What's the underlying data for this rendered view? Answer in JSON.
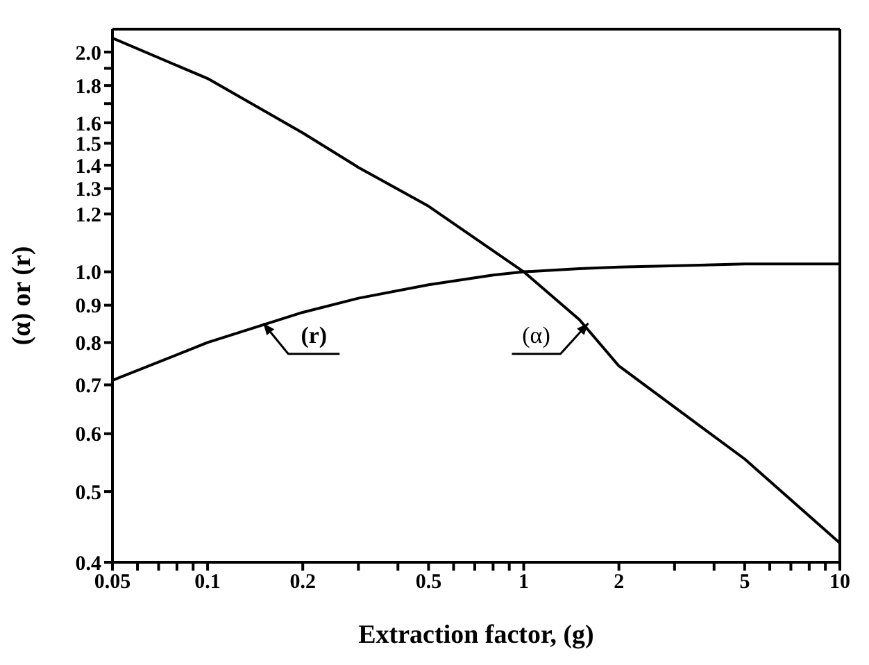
{
  "chart_data": {
    "type": "line",
    "xlabel": "Extraction factor, (g)",
    "ylabel": "(α) or (r)",
    "log": "xy",
    "marker": "none",
    "line_style": "solid",
    "xlim": [
      0.05,
      10
    ],
    "ylim": [
      0.4,
      2.15
    ],
    "xticks": [
      0.05,
      {
        "value": 0.06,
        "label": null
      },
      {
        "value": 0.07,
        "label": null
      },
      {
        "value": 0.08,
        "label": null
      },
      {
        "value": 0.09,
        "label": null
      },
      0.1,
      0.2,
      {
        "value": 0.3,
        "label": null
      },
      {
        "value": 0.4,
        "label": null
      },
      0.5,
      {
        "value": 0.6,
        "label": null
      },
      {
        "value": 0.7,
        "label": null
      },
      {
        "value": 0.8,
        "label": null
      },
      {
        "value": 0.9,
        "label": null
      },
      1,
      2,
      {
        "value": 3,
        "label": null
      },
      {
        "value": 4,
        "label": null
      },
      5,
      {
        "value": 6,
        "label": null
      },
      {
        "value": 7,
        "label": null
      },
      {
        "value": 8,
        "label": null
      },
      {
        "value": 9,
        "label": null
      },
      10
    ],
    "yticks": [
      0.4,
      0.5,
      0.6,
      0.7,
      0.8,
      0.9,
      {
        "value": 1,
        "label": "1.0"
      },
      1.2,
      1.3,
      1.4,
      1.5,
      1.6,
      {
        "value": 1.7,
        "label": null
      },
      1.8,
      {
        "value": 1.9,
        "label": null
      },
      {
        "value": 2,
        "label": "2.0"
      }
    ],
    "series": [
      {
        "color": "#000000",
        "x": [
          0.05,
          0.1,
          0.2,
          0.3,
          0.5,
          1,
          1.5,
          2,
          5,
          10
        ],
        "values": [
          2.09,
          1.84,
          1.55,
          1.39,
          1.23,
          1.0,
          0.86,
          0.743,
          0.554,
          0.425
        ]
      },
      {
        "color": "#000000",
        "x": [
          0.05,
          0.1,
          0.2,
          0.3,
          0.5,
          0.8,
          1,
          1.5,
          2,
          5,
          10
        ],
        "values": [
          0.71,
          0.8,
          0.88,
          0.92,
          0.96,
          0.99,
          1.0,
          1.01,
          1.015,
          1.025,
          1.025
        ]
      }
    ],
    "annotations": [
      {
        "text": "(r)",
        "x": 0.15,
        "y": 0.85
      },
      {
        "text": "(α)",
        "x": 1.6,
        "y": 0.85
      }
    ]
  }
}
